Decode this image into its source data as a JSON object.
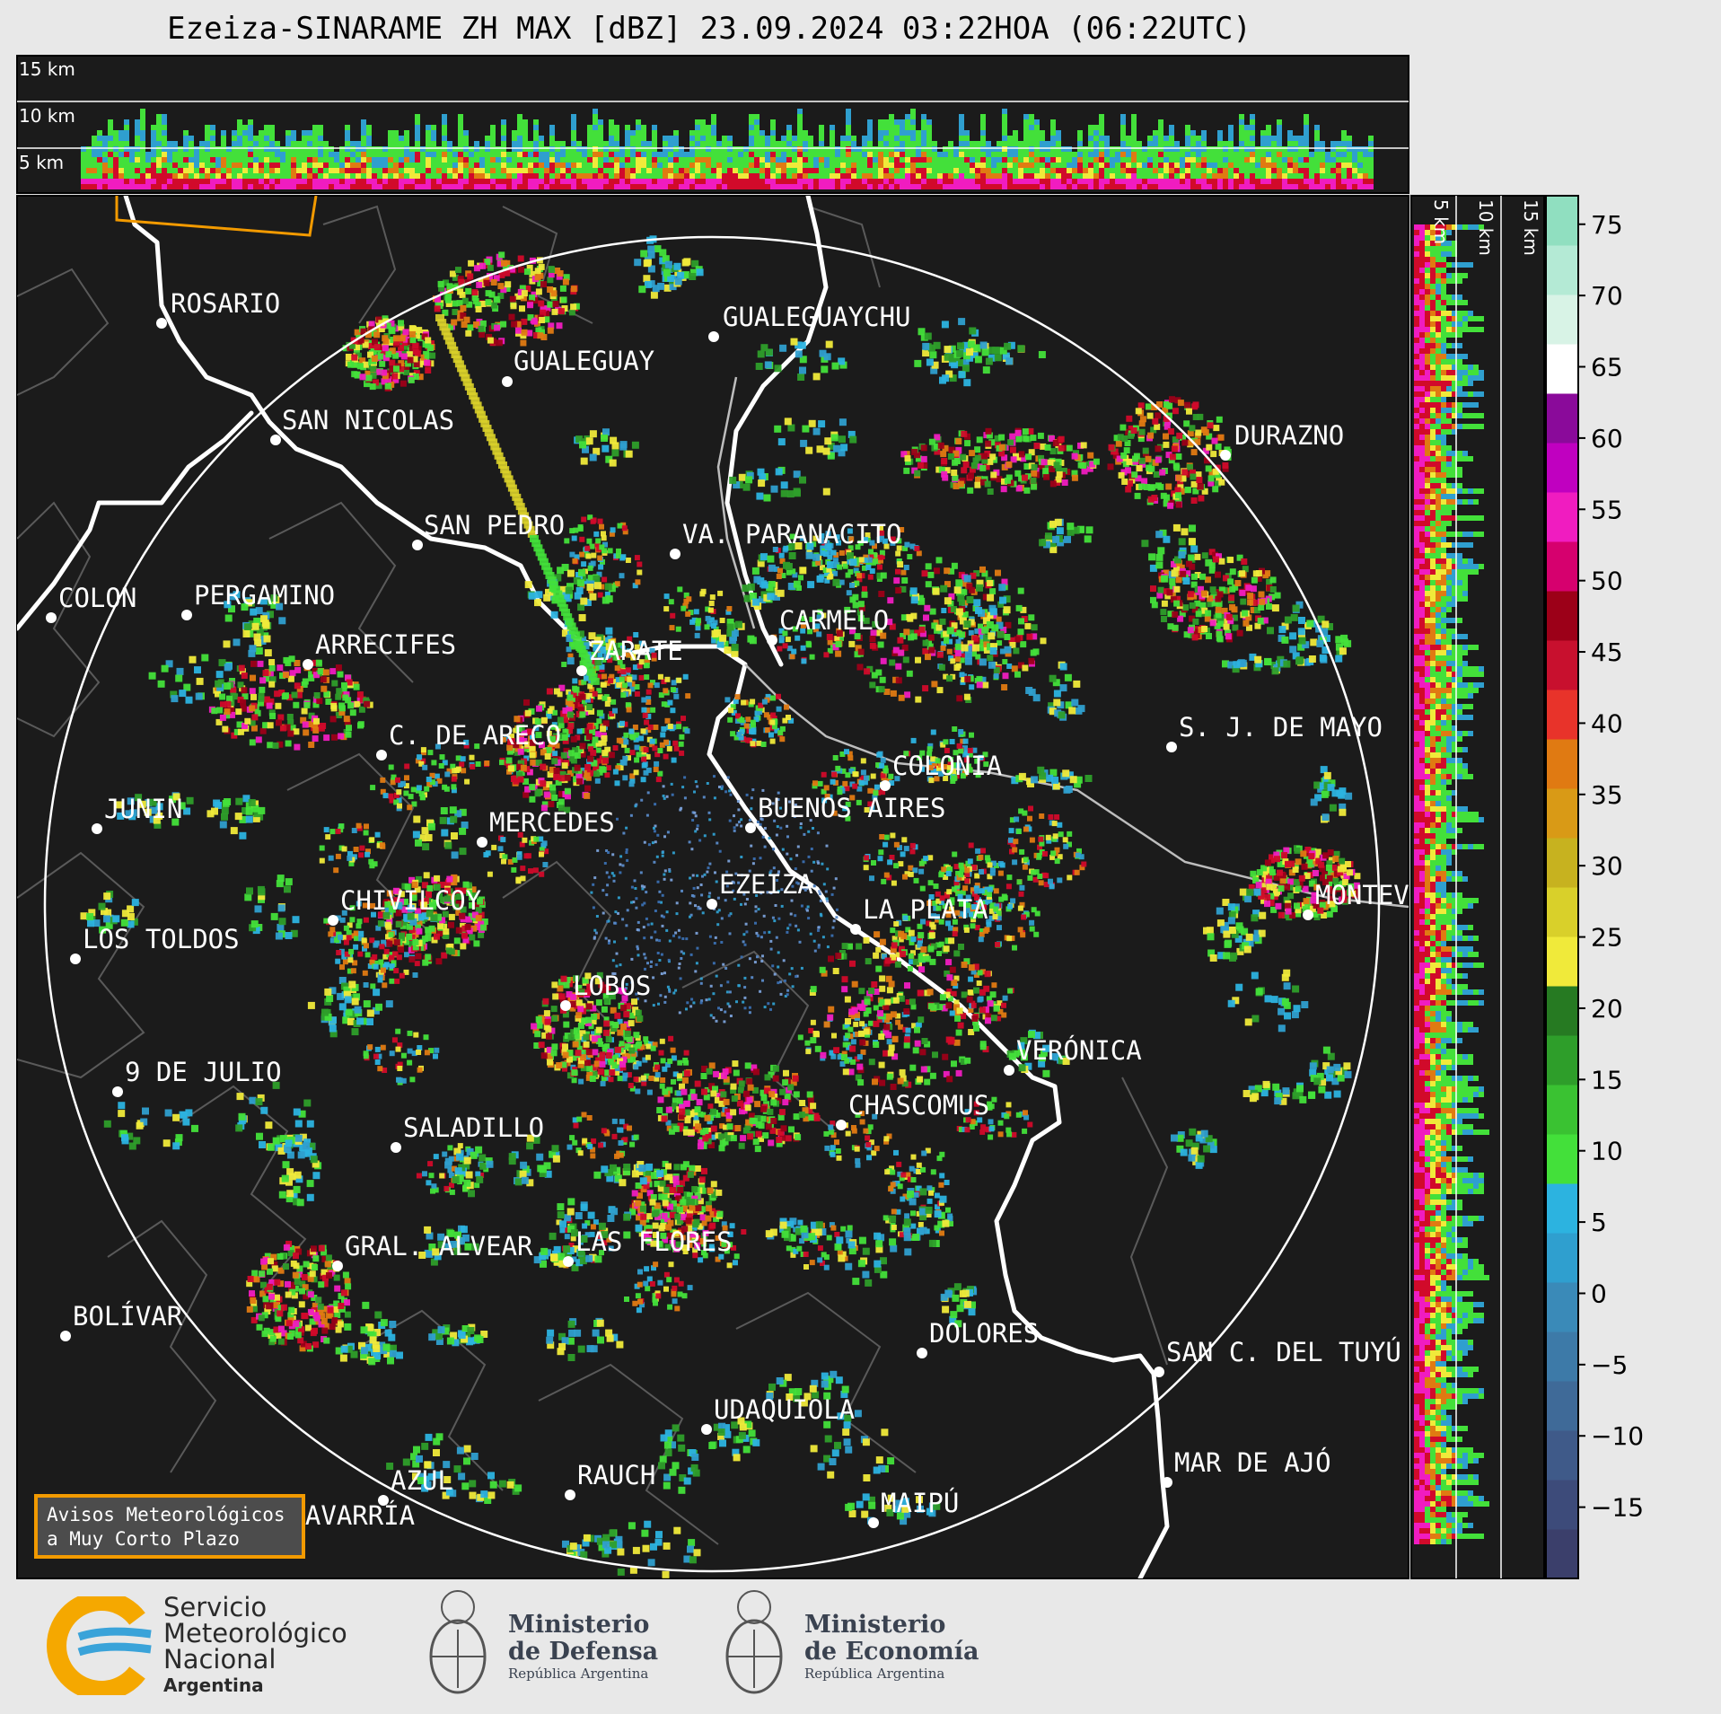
{
  "title": "Ezeiza-SINARAME ZH MAX [dBZ] 23.09.2024 03:22HOA (06:22UTC)",
  "top_profile_labels": [
    "15 km",
    "10 km",
    "5 km"
  ],
  "side_profile_labels": [
    "5 km",
    "10 km",
    "15 km"
  ],
  "colorbar": {
    "ticks": [
      "75",
      "70",
      "65",
      "60",
      "55",
      "50",
      "45",
      "40",
      "35",
      "30",
      "25",
      "20",
      "15",
      "10",
      "5",
      "0",
      "−5",
      "−10",
      "−15"
    ],
    "range": [
      -20,
      77
    ],
    "colors": [
      "#3b3f6b",
      "#3d4b7a",
      "#3f5a89",
      "#3f6a98",
      "#3d7aa8",
      "#3a8ab8",
      "#2f9fcf",
      "#2cb3e0",
      "#43e03a",
      "#3ac232",
      "#2e9e2a",
      "#267a22",
      "#f0ea3a",
      "#d9d02a",
      "#c7b21f",
      "#d99a16",
      "#e07a12",
      "#e8332a",
      "#c8102e",
      "#9c0018",
      "#d6006e",
      "#f01cc0",
      "#c000c0",
      "#8a0a9a",
      "#ffffff",
      "#d8f3e6",
      "#b4ead5",
      "#90dfc0"
    ]
  },
  "cities": [
    {
      "name": "ROSARIO"
    },
    {
      "name": "GUALEGUAYCHU"
    },
    {
      "name": "GUALEGUAY"
    },
    {
      "name": "SAN NICOLAS"
    },
    {
      "name": "DURAZNO"
    },
    {
      "name": "SAN PEDRO"
    },
    {
      "name": "VA. PARANACITO"
    },
    {
      "name": "COLON"
    },
    {
      "name": "PERGAMINO"
    },
    {
      "name": "CARMELO"
    },
    {
      "name": "ARRECIFES"
    },
    {
      "name": "ZARATE"
    },
    {
      "name": "S. J. DE MAYO"
    },
    {
      "name": "C. DE ARECO"
    },
    {
      "name": "COLONIA"
    },
    {
      "name": "JUNIN"
    },
    {
      "name": "BUENOS AIRES"
    },
    {
      "name": "MERCEDES"
    },
    {
      "name": "EZEIZA"
    },
    {
      "name": "MONTEV"
    },
    {
      "name": "CHIVILCOY"
    },
    {
      "name": "LA PLATA"
    },
    {
      "name": "LOS TOLDOS"
    },
    {
      "name": "LOBOS"
    },
    {
      "name": "VERÓNICA"
    },
    {
      "name": "9 DE JULIO"
    },
    {
      "name": "CHASCOMUS"
    },
    {
      "name": "SALADILLO"
    },
    {
      "name": "GRAL. ALVEAR"
    },
    {
      "name": "LAS FLORES"
    },
    {
      "name": "BOLÍVAR"
    },
    {
      "name": "DOLORES"
    },
    {
      "name": "SAN C. DEL TUYÚ"
    },
    {
      "name": "UDAQUIOLA"
    },
    {
      "name": "AZUL"
    },
    {
      "name": "RAUCH"
    },
    {
      "name": "MAR DE AJÓ"
    },
    {
      "name": "OLAVARRÍA"
    },
    {
      "name": "MAIPÚ"
    }
  ],
  "aviso": {
    "line1": "Avisos Meteorológicos",
    "line2": "a Muy Corto Plazo"
  },
  "footer": {
    "smn": [
      "Servicio",
      "Meteorológico",
      "Nacional",
      "Argentina"
    ],
    "defensa": {
      "title1": "Ministerio",
      "title2": "de Defensa",
      "sub": "República Argentina"
    },
    "economia": {
      "title1": "Ministerio",
      "title2": "de Economía",
      "sub": "República Argentina"
    }
  }
}
